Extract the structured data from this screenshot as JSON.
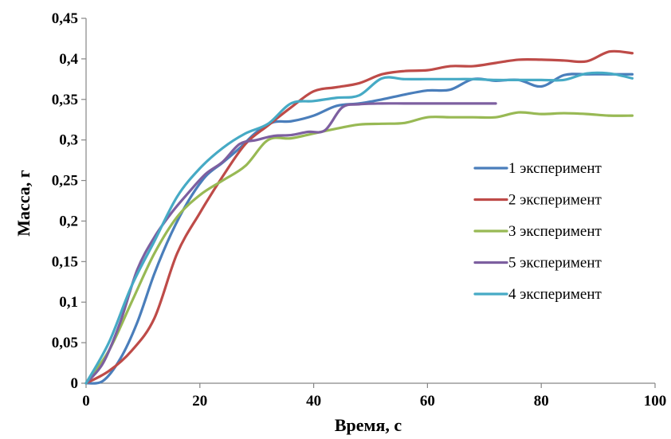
{
  "chart_data": {
    "type": "line",
    "title": "",
    "xlabel": "Время, с",
    "ylabel": "Масса, г",
    "xlim": [
      0,
      100
    ],
    "ylim": [
      0,
      0.45
    ],
    "x_ticks": [
      0,
      20,
      40,
      60,
      80,
      100
    ],
    "x_tick_labels": [
      "0",
      "20",
      "40",
      "60",
      "80",
      "100"
    ],
    "y_ticks": [
      0,
      0.05,
      0.1,
      0.15,
      0.2,
      0.25,
      0.3,
      0.35,
      0.4,
      0.45
    ],
    "y_tick_labels": [
      "0",
      "0,05",
      "0,1",
      "0,15",
      "0,2",
      "0,25",
      "0,3",
      "0,35",
      "0,4",
      "0,45"
    ],
    "grid": false,
    "legend_position": "right",
    "series": [
      {
        "name": "1 эксперимент",
        "color": "#4a7ebb",
        "points": [
          [
            0,
            0
          ],
          [
            3,
            0.003
          ],
          [
            6,
            0.03
          ],
          [
            9,
            0.075
          ],
          [
            12,
            0.135
          ],
          [
            15,
            0.185
          ],
          [
            18,
            0.225
          ],
          [
            21,
            0.255
          ],
          [
            24,
            0.272
          ],
          [
            27,
            0.29
          ],
          [
            30,
            0.31
          ],
          [
            33,
            0.322
          ],
          [
            36,
            0.323
          ],
          [
            40,
            0.33
          ],
          [
            44,
            0.342
          ],
          [
            48,
            0.345
          ],
          [
            52,
            0.35
          ],
          [
            56,
            0.356
          ],
          [
            60,
            0.361
          ],
          [
            64,
            0.362
          ],
          [
            68,
            0.375
          ],
          [
            72,
            0.373
          ],
          [
            76,
            0.374
          ],
          [
            80,
            0.366
          ],
          [
            84,
            0.38
          ],
          [
            88,
            0.381
          ],
          [
            92,
            0.381
          ],
          [
            96,
            0.381
          ]
        ]
      },
      {
        "name": "2 эксперимент",
        "color": "#be4b48",
        "points": [
          [
            0,
            0
          ],
          [
            4,
            0.015
          ],
          [
            8,
            0.04
          ],
          [
            12,
            0.08
          ],
          [
            16,
            0.16
          ],
          [
            20,
            0.21
          ],
          [
            24,
            0.255
          ],
          [
            28,
            0.295
          ],
          [
            32,
            0.318
          ],
          [
            36,
            0.34
          ],
          [
            40,
            0.36
          ],
          [
            44,
            0.365
          ],
          [
            48,
            0.37
          ],
          [
            52,
            0.381
          ],
          [
            56,
            0.385
          ],
          [
            60,
            0.386
          ],
          [
            64,
            0.391
          ],
          [
            68,
            0.391
          ],
          [
            72,
            0.395
          ],
          [
            76,
            0.399
          ],
          [
            80,
            0.399
          ],
          [
            84,
            0.398
          ],
          [
            88,
            0.397
          ],
          [
            92,
            0.409
          ],
          [
            96,
            0.407
          ]
        ]
      },
      {
        "name": "3 эксперимент",
        "color": "#98b954",
        "points": [
          [
            0,
            0
          ],
          [
            4,
            0.04
          ],
          [
            8,
            0.1
          ],
          [
            12,
            0.16
          ],
          [
            16,
            0.205
          ],
          [
            20,
            0.232
          ],
          [
            24,
            0.25
          ],
          [
            28,
            0.268
          ],
          [
            32,
            0.3
          ],
          [
            36,
            0.302
          ],
          [
            40,
            0.308
          ],
          [
            44,
            0.314
          ],
          [
            48,
            0.319
          ],
          [
            52,
            0.32
          ],
          [
            56,
            0.321
          ],
          [
            60,
            0.328
          ],
          [
            64,
            0.328
          ],
          [
            68,
            0.328
          ],
          [
            72,
            0.328
          ],
          [
            76,
            0.334
          ],
          [
            80,
            0.332
          ],
          [
            84,
            0.333
          ],
          [
            88,
            0.332
          ],
          [
            92,
            0.33
          ],
          [
            96,
            0.33
          ]
        ]
      },
      {
        "name": "5 эксперимент",
        "color": "#7d5fa0",
        "points": [
          [
            0,
            0
          ],
          [
            3,
            0.025
          ],
          [
            6,
            0.075
          ],
          [
            9,
            0.14
          ],
          [
            12,
            0.18
          ],
          [
            15,
            0.21
          ],
          [
            18,
            0.235
          ],
          [
            21,
            0.258
          ],
          [
            24,
            0.273
          ],
          [
            27,
            0.295
          ],
          [
            30,
            0.3
          ],
          [
            33,
            0.305
          ],
          [
            36,
            0.306
          ],
          [
            39,
            0.31
          ],
          [
            42,
            0.312
          ],
          [
            45,
            0.34
          ],
          [
            48,
            0.344
          ],
          [
            52,
            0.345
          ],
          [
            56,
            0.345
          ],
          [
            60,
            0.345
          ],
          [
            64,
            0.345
          ],
          [
            68,
            0.345
          ],
          [
            72,
            0.345
          ]
        ]
      },
      {
        "name": "4 экспериμент",
        "color": "#46aac5",
        "points": [
          [
            0,
            0
          ],
          [
            4,
            0.05
          ],
          [
            8,
            0.12
          ],
          [
            12,
            0.175
          ],
          [
            16,
            0.23
          ],
          [
            20,
            0.265
          ],
          [
            24,
            0.29
          ],
          [
            28,
            0.308
          ],
          [
            32,
            0.32
          ],
          [
            36,
            0.345
          ],
          [
            40,
            0.348
          ],
          [
            44,
            0.352
          ],
          [
            48,
            0.355
          ],
          [
            52,
            0.376
          ],
          [
            56,
            0.375
          ],
          [
            60,
            0.375
          ],
          [
            64,
            0.375
          ],
          [
            68,
            0.375
          ],
          [
            72,
            0.374
          ],
          [
            76,
            0.374
          ],
          [
            80,
            0.374
          ],
          [
            84,
            0.374
          ],
          [
            88,
            0.382
          ],
          [
            92,
            0.382
          ],
          [
            96,
            0.376
          ]
        ]
      }
    ]
  }
}
